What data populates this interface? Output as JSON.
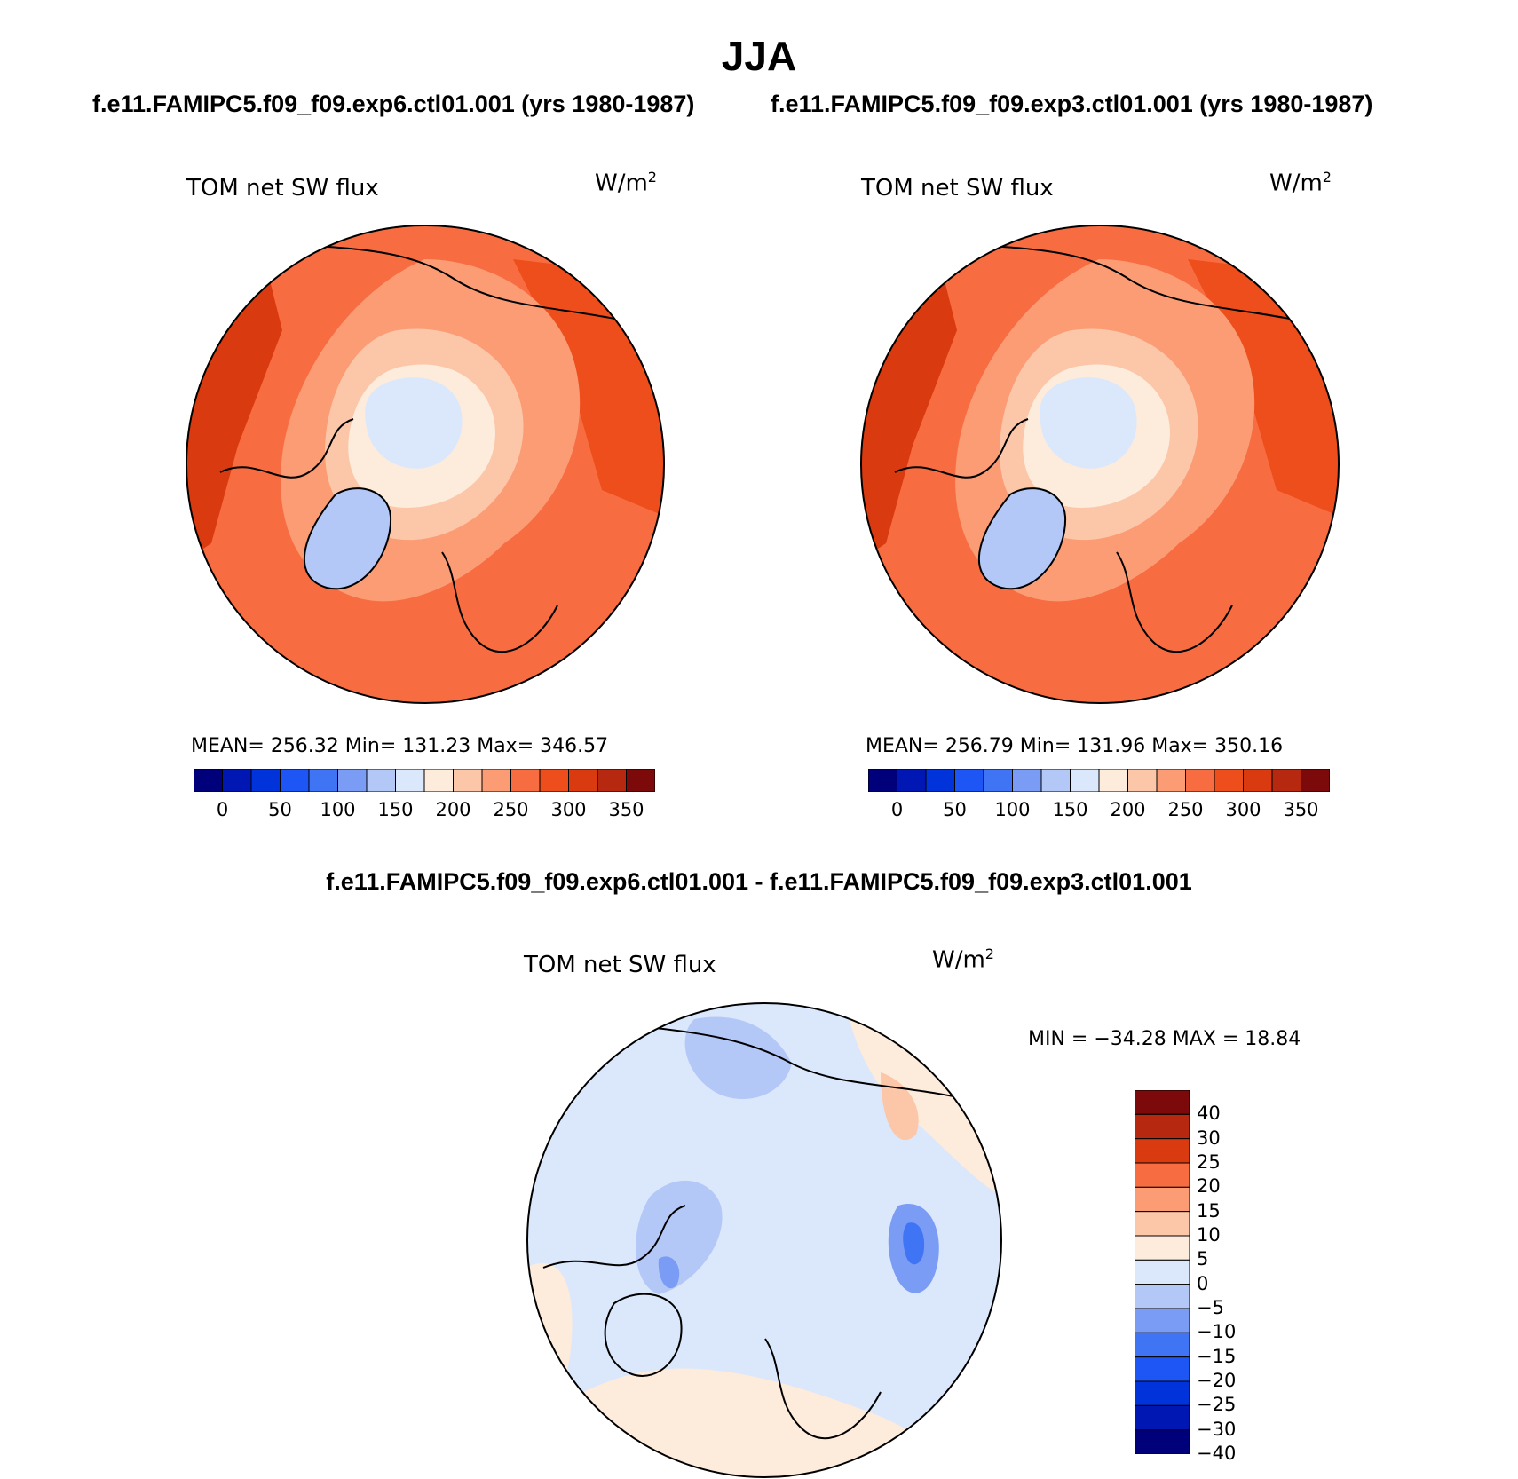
{
  "figure": {
    "title": "JJA",
    "subtitle_left": "f.e11.FAMIPC5.f09_f09.exp6.ctl01.001 (yrs 1980-1987)",
    "subtitle_right": "f.e11.FAMIPC5.f09_f09.exp3.ctl01.001 (yrs 1980-1987)",
    "diff_title": "f.e11.FAMIPC5.f09_f09.exp6.ctl01.001 - f.e11.FAMIPC5.f09_f09.exp3.ctl01.001"
  },
  "panels": {
    "left": {
      "label": "TOM net SW flux",
      "units_base": "W/m",
      "units_exp": "2",
      "stats": "MEAN= 256.32   Min= 131.23   Max= 346.57"
    },
    "right": {
      "label": "TOM net SW flux",
      "units_base": "W/m",
      "units_exp": "2",
      "stats": "MEAN= 256.79   Min= 131.96   Max= 350.16"
    },
    "diff": {
      "label": "TOM net SW flux",
      "units_base": "W/m",
      "units_exp": "2",
      "stats": "MIN = −34.28 MAX =  18.84"
    }
  },
  "colorbars": {
    "abs": {
      "colors": [
        "#00007a",
        "#0017b4",
        "#0033d9",
        "#1e55f5",
        "#3f74f5",
        "#7b9cf5",
        "#b4c8f8",
        "#dbe8fb",
        "#fdebdc",
        "#fcc7a8",
        "#fb9c74",
        "#f76c40",
        "#ee4d1c",
        "#d93a10",
        "#b62810",
        "#7d0a0a"
      ],
      "tick_labels": [
        "0",
        "50",
        "100",
        "150",
        "200",
        "250",
        "300",
        "350"
      ]
    },
    "diff": {
      "colors": [
        "#7d0a0a",
        "#b62810",
        "#d93a10",
        "#f76c40",
        "#fb9c74",
        "#fcc7a8",
        "#fdebdc",
        "#dbe8fb",
        "#b4c8f8",
        "#7b9cf5",
        "#3f74f5",
        "#1e55f5",
        "#0033d9",
        "#0017b4",
        "#00007a"
      ],
      "tick_labels": [
        "40",
        "30",
        "25",
        "20",
        "15",
        "10",
        "5",
        "0",
        "−5",
        "−10",
        "−15",
        "−20",
        "−25",
        "−30",
        "−40"
      ]
    }
  },
  "chart_data": [
    {
      "type": "heatmap",
      "title": "TOM net SW flux",
      "projection": "north polar stereographic",
      "season": "JJA",
      "case": "f.e11.FAMIPC5.f09_f09.exp6.ctl01.001",
      "years": "1980-1987",
      "units": "W/m2",
      "mean": 256.32,
      "min": 131.23,
      "max": 346.57,
      "contour_levels": [
        0,
        25,
        50,
        75,
        100,
        125,
        150,
        175,
        200,
        225,
        250,
        275,
        300,
        325,
        350
      ]
    },
    {
      "type": "heatmap",
      "title": "TOM net SW flux",
      "projection": "north polar stereographic",
      "season": "JJA",
      "case": "f.e11.FAMIPC5.f09_f09.exp3.ctl01.001",
      "years": "1980-1987",
      "units": "W/m2",
      "mean": 256.79,
      "min": 131.96,
      "max": 350.16,
      "contour_levels": [
        0,
        25,
        50,
        75,
        100,
        125,
        150,
        175,
        200,
        225,
        250,
        275,
        300,
        325,
        350
      ]
    },
    {
      "type": "heatmap",
      "title": "TOM net SW flux",
      "projection": "north polar stereographic",
      "season": "JJA",
      "case": "exp6 - exp3",
      "units": "W/m2",
      "min": -34.28,
      "max": 18.84,
      "contour_levels": [
        -40,
        -30,
        -25,
        -20,
        -15,
        -10,
        -5,
        0,
        5,
        10,
        15,
        20,
        25,
        30,
        40
      ]
    }
  ]
}
